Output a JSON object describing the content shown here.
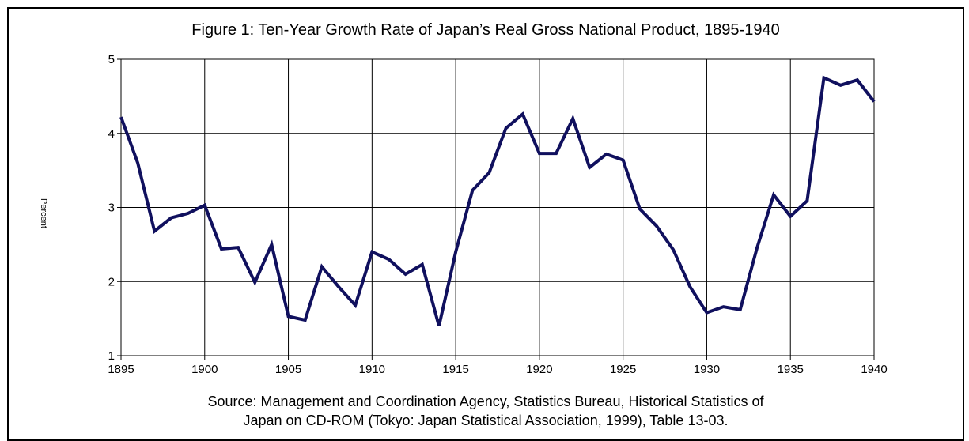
{
  "chart_data": {
    "type": "line",
    "title": "Figure 1:  Ten-Year Growth Rate of Japan’s Real Gross National Product, 1895-1940",
    "y_label": "Percent",
    "source": [
      "Source:  Management and Coordination Agency, Statistics Bureau, Historical Statistics of",
      "Japan on CD-ROM (Tokyo:  Japan Statistical Association, 1999), Table 13-03."
    ],
    "x": [
      1895,
      1896,
      1897,
      1898,
      1899,
      1900,
      1901,
      1902,
      1903,
      1904,
      1905,
      1906,
      1907,
      1908,
      1909,
      1910,
      1911,
      1912,
      1913,
      1914,
      1915,
      1916,
      1917,
      1918,
      1919,
      1920,
      1921,
      1922,
      1923,
      1924,
      1925,
      1926,
      1927,
      1928,
      1929,
      1930,
      1931,
      1932,
      1933,
      1934,
      1935,
      1936,
      1937,
      1938,
      1939,
      1940
    ],
    "series": [
      {
        "color": "#10105e",
        "values": [
          4.22,
          3.6,
          2.68,
          2.86,
          2.92,
          3.03,
          2.44,
          2.46,
          1.99,
          2.5,
          1.53,
          1.48,
          2.2,
          1.93,
          1.68,
          2.4,
          2.3,
          2.1,
          2.23,
          1.4,
          2.4,
          3.23,
          3.47,
          4.07,
          4.26,
          3.73,
          3.73,
          4.2,
          3.54,
          3.72,
          3.64,
          2.98,
          2.75,
          2.43,
          1.93,
          1.58,
          1.66,
          1.62,
          2.45,
          3.17,
          2.88,
          3.09,
          4.75,
          4.65,
          4.72,
          4.43
        ]
      }
    ],
    "xlim": [
      1895,
      1940
    ],
    "xticks": [
      1895,
      1900,
      1905,
      1910,
      1915,
      1920,
      1925,
      1930,
      1935,
      1940
    ],
    "ylim": [
      1,
      5
    ],
    "yticks": [
      1,
      2,
      3,
      4,
      5
    ],
    "grid": true
  }
}
